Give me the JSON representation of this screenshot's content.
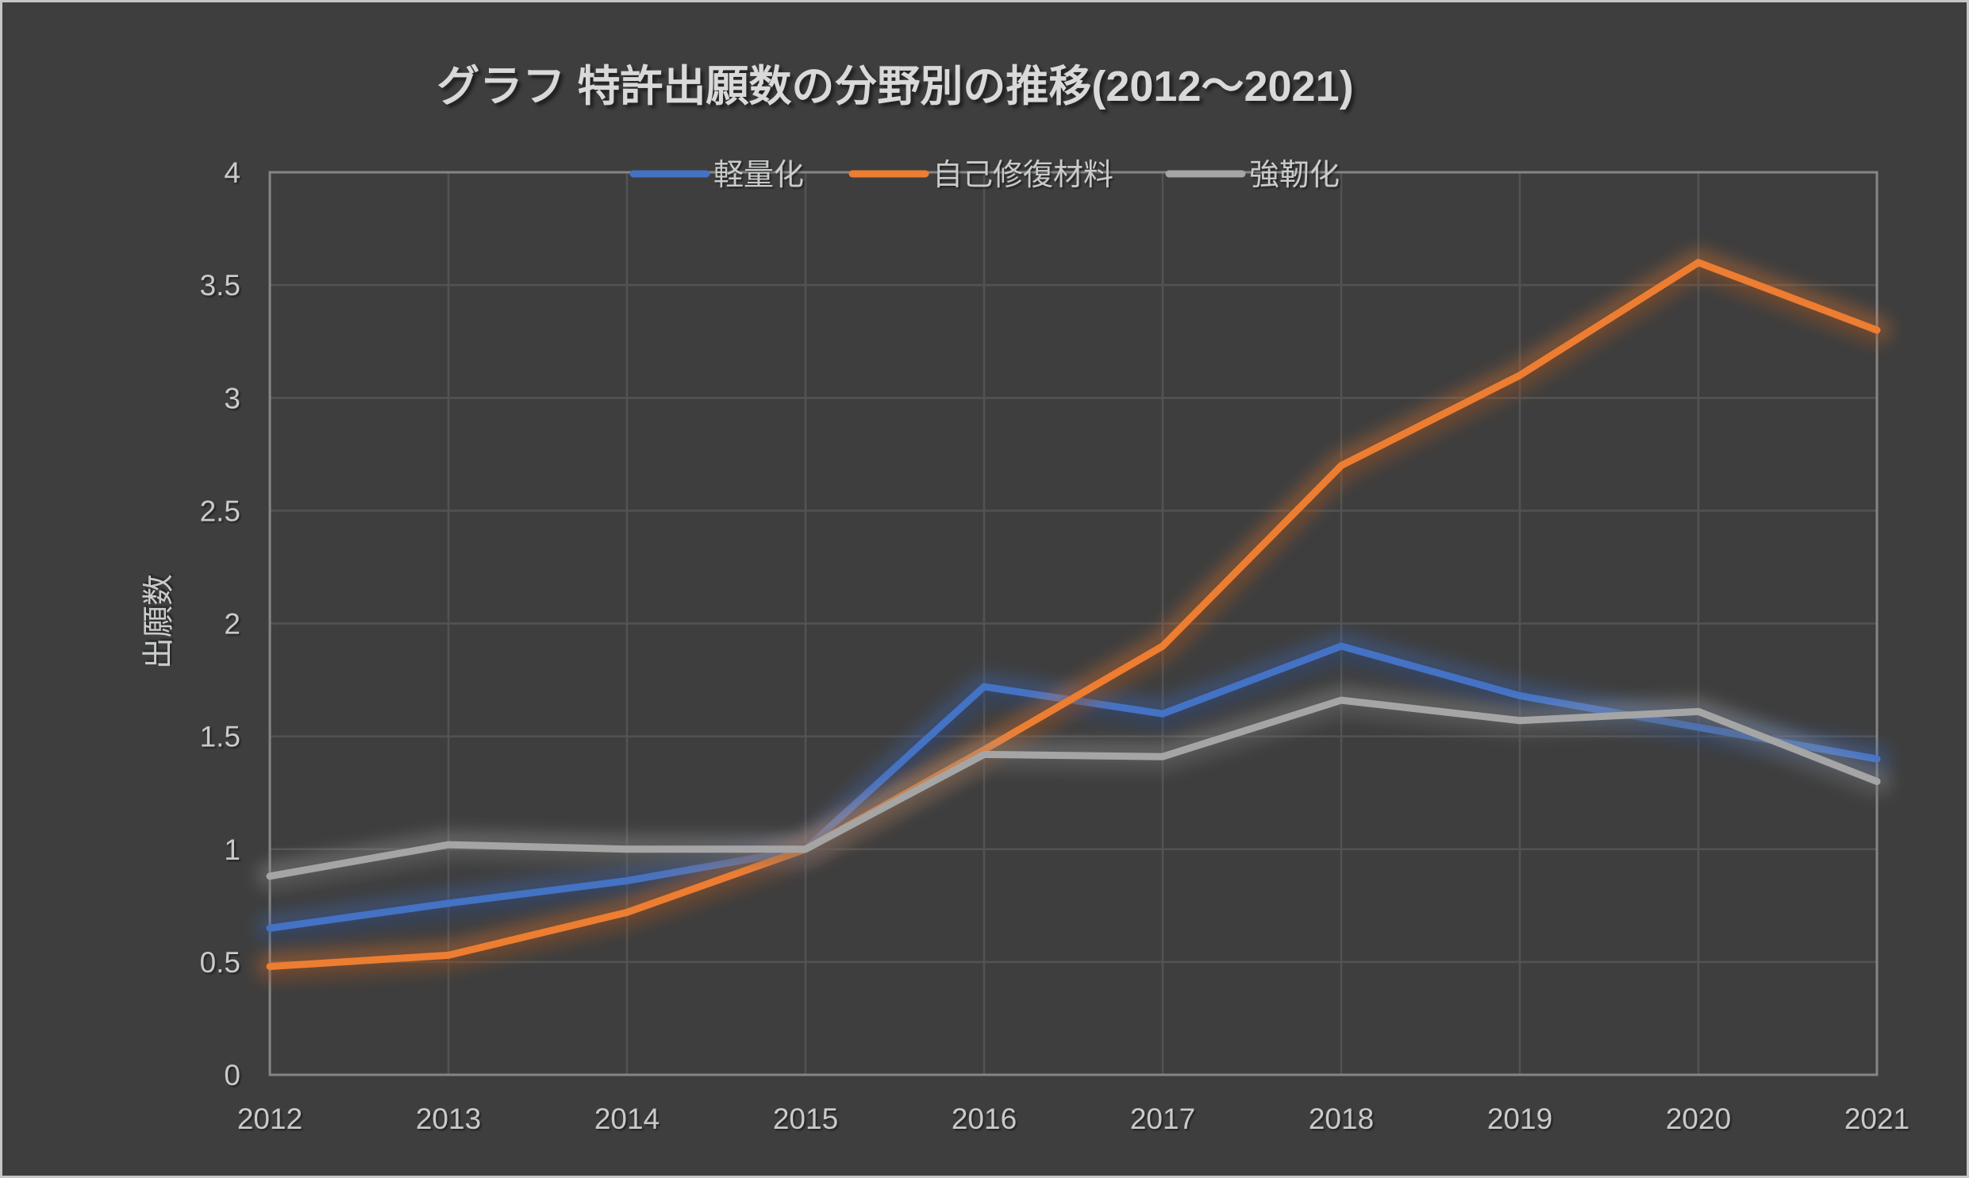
{
  "chart_data": {
    "type": "line",
    "title": "グラフ 特許出願数の分野別の推移(2012～2021)",
    "ylabel": "出願数",
    "xlabel": "",
    "categories": [
      "2012",
      "2013",
      "2014",
      "2015",
      "2016",
      "2017",
      "2018",
      "2019",
      "2020",
      "2021"
    ],
    "series": [
      {
        "name": "軽量化",
        "color": "#4472C4",
        "values": [
          0.65,
          0.76,
          0.86,
          1.0,
          1.72,
          1.6,
          1.9,
          1.68,
          1.54,
          1.4
        ]
      },
      {
        "name": "自己修復材料",
        "color": "#ED7D31",
        "values": [
          0.48,
          0.53,
          0.72,
          1.0,
          1.44,
          1.9,
          2.7,
          3.1,
          3.6,
          3.3
        ]
      },
      {
        "name": "強靭化",
        "color": "#A5A5A5",
        "values": [
          0.88,
          1.02,
          1.0,
          1.0,
          1.42,
          1.41,
          1.66,
          1.57,
          1.61,
          1.3
        ]
      }
    ],
    "ylim": [
      0,
      4
    ],
    "ytick_values": [
      0,
      0.5,
      1,
      1.5,
      2,
      2.5,
      3,
      3.5,
      4
    ],
    "ytick_labels": [
      "0",
      "0.5",
      "1",
      "1.5",
      "2",
      "2.5",
      "3",
      "3.5",
      "4"
    ],
    "grid": true,
    "legend_position": "top-center"
  },
  "theme": {
    "background": "#3E3E3E",
    "frame_border": "#C6C6C6",
    "gridline_color": "#535353",
    "plot_border_color": "#858585",
    "text_color": "#C9CBCB",
    "title_color": "#D9D9D9"
  }
}
